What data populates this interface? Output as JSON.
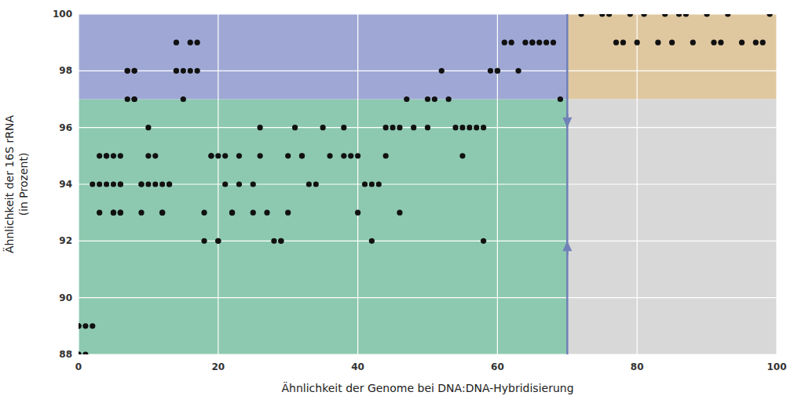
{
  "chart_data": {
    "type": "scatter",
    "xlabel": "Ähnlichkeit der Genome bei DNA:DNA-Hybridisierung",
    "ylabel": "Ähnlichkeit der 16S rRNA\n(in Prozent)",
    "xlim": [
      0,
      100
    ],
    "ylim": [
      88,
      100
    ],
    "xticks": [
      0,
      20,
      40,
      60,
      80,
      100
    ],
    "yticks": [
      88,
      90,
      92,
      94,
      96,
      98,
      100
    ],
    "grid": true,
    "color": "#111111",
    "regions": [
      {
        "x": [
          0,
          70
        ],
        "y": [
          88,
          97
        ],
        "color": "#8dc9b0"
      },
      {
        "x": [
          0,
          70
        ],
        "y": [
          97,
          100
        ],
        "color": "#9fa8d5"
      },
      {
        "x": [
          70,
          100
        ],
        "y": [
          97,
          100
        ],
        "color": "#dfc8a0"
      },
      {
        "x": [
          70,
          100
        ],
        "y": [
          88,
          97
        ],
        "color": "#d8d8d8"
      }
    ],
    "threshold": {
      "x": 70,
      "color": "#7080b8"
    },
    "arrows": [
      {
        "x": 70,
        "from": 96.5,
        "to": 96
      },
      {
        "x": 70,
        "from": 91.5,
        "to": 92
      }
    ],
    "x": [
      0,
      0,
      0,
      0,
      1,
      1,
      2,
      2,
      3,
      3,
      3,
      4,
      4,
      4,
      5,
      5,
      5,
      5,
      6,
      6,
      6,
      6,
      6,
      7,
      7,
      7,
      8,
      8,
      8,
      8,
      9,
      9,
      9,
      10,
      10,
      10,
      11,
      11,
      12,
      12,
      12,
      13,
      13,
      14,
      14,
      14,
      15,
      15,
      16,
      16,
      17,
      17,
      18,
      18,
      19,
      19,
      20,
      20,
      20,
      21,
      21,
      22,
      22,
      23,
      23,
      25,
      25,
      26,
      26,
      27,
      28,
      29,
      29,
      30,
      30,
      31,
      32,
      32,
      33,
      34,
      35,
      36,
      38,
      38,
      39,
      40,
      40,
      41,
      42,
      42,
      43,
      44,
      44,
      45,
      46,
      46,
      47,
      48,
      50,
      50,
      51,
      52,
      53,
      54,
      55,
      55,
      56,
      57,
      58,
      58,
      59,
      60,
      60,
      61,
      62,
      63,
      64,
      65,
      65,
      66,
      67,
      68,
      69,
      72,
      75,
      76,
      77,
      78,
      79,
      80,
      81,
      83,
      84,
      85,
      86,
      87,
      88,
      90,
      91,
      92,
      93,
      95,
      97,
      98,
      99
    ],
    "values": [
      88,
      89,
      89,
      88,
      89,
      88,
      94,
      89,
      95,
      93,
      94,
      95,
      95,
      94,
      95,
      94,
      93,
      93,
      94,
      94,
      95,
      93,
      93,
      98,
      98,
      97,
      98,
      98,
      97,
      97,
      94,
      93,
      94,
      95,
      96,
      94,
      95,
      94,
      94,
      93,
      93,
      94,
      94,
      99,
      98,
      98,
      97,
      98,
      99,
      98,
      98,
      99,
      93,
      92,
      95,
      95,
      95,
      92,
      92,
      95,
      94,
      93,
      93,
      95,
      94,
      94,
      93,
      95,
      96,
      93,
      92,
      92,
      92,
      95,
      93,
      96,
      95,
      95,
      94,
      94,
      96,
      95,
      96,
      95,
      95,
      95,
      93,
      94,
      94,
      92,
      94,
      96,
      95,
      96,
      96,
      93,
      97,
      96,
      97,
      96,
      97,
      98,
      97,
      96,
      96,
      95,
      96,
      96,
      96,
      92,
      98,
      98,
      98,
      99,
      99,
      98,
      99,
      99,
      99,
      99,
      99,
      99,
      97,
      100,
      100,
      100,
      99,
      99,
      100,
      99,
      100,
      99,
      100,
      99,
      100,
      100,
      99,
      100,
      99,
      99,
      100,
      99,
      99,
      99,
      100
    ]
  }
}
